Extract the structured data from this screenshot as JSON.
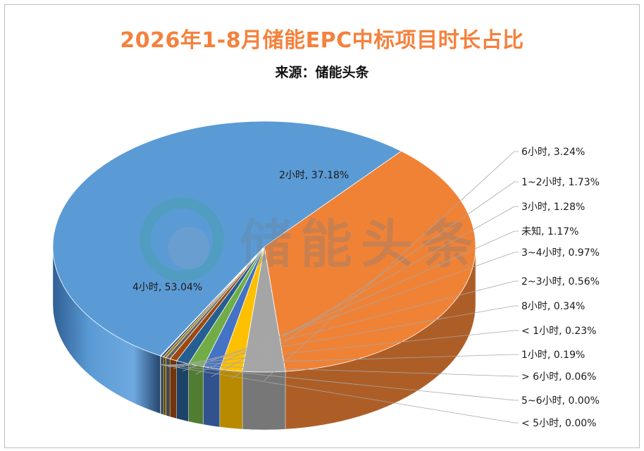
{
  "chart_data": {
    "type": "pie",
    "title": "2026年1-8月储能EPC中标项目时长占比",
    "subtitle": "来源：储能头条",
    "slices": [
      {
        "label": "4小时",
        "value": 53.04,
        "display": "4小时, 53.04%",
        "color": "#5b9bd5"
      },
      {
        "label": "2小时",
        "value": 37.18,
        "display": "2小时, 37.18%",
        "color": "#f08236"
      },
      {
        "label": "6小时",
        "value": 3.24,
        "display": "6小时, 3.24%",
        "color": "#a5a5a5"
      },
      {
        "label": "1~2小时",
        "value": 1.73,
        "display": "1~2小时, 1.73%",
        "color": "#ffc000"
      },
      {
        "label": "3小时",
        "value": 1.28,
        "display": "3小时, 1.28%",
        "color": "#4472c4"
      },
      {
        "label": "未知",
        "value": 1.17,
        "display": "未知, 1.17%",
        "color": "#70ad47"
      },
      {
        "label": "3~4小时",
        "value": 0.97,
        "display": "3~4小时, 0.97%",
        "color": "#255e91"
      },
      {
        "label": "2~3小时",
        "value": 0.56,
        "display": "2~3小时, 0.56%",
        "color": "#9e480e"
      },
      {
        "label": "8小时",
        "value": 0.34,
        "display": "8小时, 0.34%",
        "color": "#636363"
      },
      {
        "label": "< 1小时",
        "value": 0.23,
        "display": "< 1小时, 0.23%",
        "color": "#997300"
      },
      {
        "label": "1小时",
        "value": 0.19,
        "display": "1小时, 0.19%",
        "color": "#264478"
      },
      {
        "label": "> 6小时",
        "value": 0.06,
        "display": "> 6小时, 0.06%",
        "color": "#43682b"
      },
      {
        "label": "5~6小时",
        "value": 0.0,
        "display": "5~6小时, 0.00%",
        "color": "#7cafdd"
      },
      {
        "label": "< 5小时",
        "value": 0.0,
        "display": "< 5小时, 0.00%",
        "color": "#f1975a"
      }
    ]
  },
  "watermark": {
    "text": "储能头条"
  }
}
